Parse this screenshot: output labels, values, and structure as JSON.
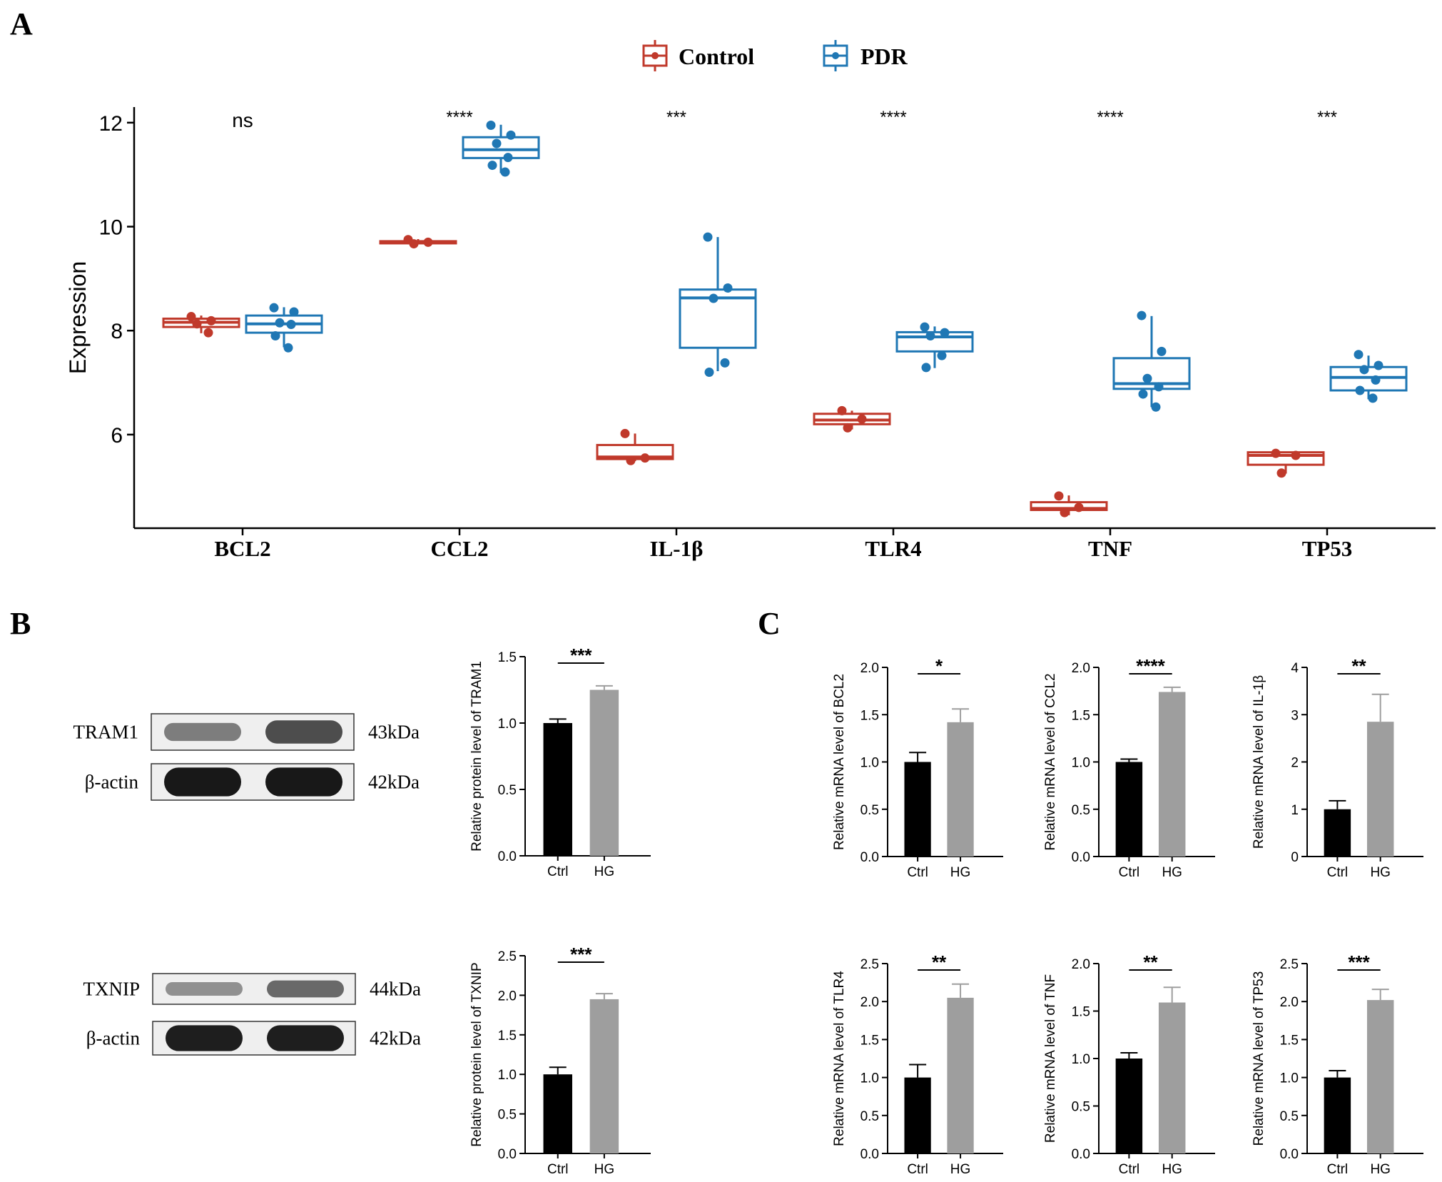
{
  "panels": {
    "a": "A",
    "b": "B",
    "c": "C"
  },
  "colors": {
    "control": "#c0392b",
    "pdr": "#1f77b4",
    "ctrl_bar": "#000000",
    "hg_bar": "#9e9e9e",
    "band": "#1a1a1a"
  },
  "chart_data": [
    {
      "id": "A",
      "type": "boxplot",
      "ylabel": "Expression",
      "ylim": [
        4.2,
        12.3
      ],
      "yticks": [
        6,
        8,
        10,
        12
      ],
      "legend": {
        "placement": "top",
        "entries": [
          "Control",
          "PDR"
        ]
      },
      "categories": [
        "BCL2",
        "CCL2",
        "IL-1β",
        "TLR4",
        "TNF",
        "TP53"
      ],
      "significance": [
        "ns",
        "****",
        "***",
        "****",
        "****",
        "***"
      ],
      "series": [
        {
          "name": "Control",
          "color": "#c0392b",
          "boxes": [
            {
              "q1": 8.07,
              "median": 8.16,
              "q3": 8.23,
              "whisker_low": 7.95,
              "whisker_high": 8.29,
              "points": [
                8.27,
                8.19,
                8.13,
                7.96
              ]
            },
            {
              "q1": 9.68,
              "median": 9.7,
              "q3": 9.72,
              "whisker_low": 9.66,
              "whisker_high": 9.76,
              "points": [
                9.75,
                9.7,
                9.67
              ]
            },
            {
              "q1": 5.53,
              "median": 5.57,
              "q3": 5.8,
              "whisker_low": 5.49,
              "whisker_high": 6.02,
              "points": [
                6.02,
                5.55,
                5.5
              ]
            },
            {
              "q1": 6.2,
              "median": 6.28,
              "q3": 6.4,
              "whisker_low": 6.1,
              "whisker_high": 6.46,
              "points": [
                6.46,
                6.3,
                6.13
              ]
            },
            {
              "q1": 4.55,
              "median": 4.58,
              "q3": 4.7,
              "whisker_low": 4.45,
              "whisker_high": 4.83,
              "points": [
                4.82,
                4.6,
                4.5
              ]
            },
            {
              "q1": 5.42,
              "median": 5.6,
              "q3": 5.66,
              "whisker_low": 5.25,
              "whisker_high": 5.67,
              "points": [
                5.64,
                5.6,
                5.26
              ]
            }
          ]
        },
        {
          "name": "PDR",
          "color": "#1f77b4",
          "boxes": [
            {
              "q1": 7.96,
              "median": 8.13,
              "q3": 8.29,
              "whisker_low": 7.68,
              "whisker_high": 8.45,
              "points": [
                8.44,
                8.36,
                8.15,
                8.12,
                7.9,
                7.67
              ]
            },
            {
              "q1": 11.32,
              "median": 11.48,
              "q3": 11.72,
              "whisker_low": 11.03,
              "whisker_high": 11.96,
              "points": [
                11.95,
                11.76,
                11.6,
                11.33,
                11.18,
                11.05
              ]
            },
            {
              "q1": 7.67,
              "median": 8.63,
              "q3": 8.79,
              "whisker_low": 7.22,
              "whisker_high": 9.8,
              "points": [
                9.8,
                8.82,
                8.62,
                7.38,
                7.2
              ]
            },
            {
              "q1": 7.6,
              "median": 7.88,
              "q3": 7.97,
              "whisker_low": 7.28,
              "whisker_high": 8.08,
              "points": [
                8.07,
                7.96,
                7.9,
                7.52,
                7.29
              ]
            },
            {
              "q1": 6.88,
              "median": 6.98,
              "q3": 7.47,
              "whisker_low": 6.53,
              "whisker_high": 8.28,
              "points": [
                8.29,
                7.6,
                7.08,
                6.92,
                6.78,
                6.53
              ]
            },
            {
              "q1": 6.85,
              "median": 7.1,
              "q3": 7.3,
              "whisker_low": 6.68,
              "whisker_high": 7.52,
              "points": [
                7.54,
                7.33,
                7.25,
                7.05,
                6.85,
                6.7
              ]
            }
          ]
        }
      ]
    },
    {
      "id": "B1",
      "type": "bar",
      "categories": [
        "Ctrl",
        "HG"
      ],
      "values": [
        1.0,
        1.25
      ],
      "errors": [
        0.03,
        0.03
      ],
      "ylabel": "Relative protein level of TRAM1",
      "ylim": [
        0,
        1.5
      ],
      "yticks": [
        "0.0",
        "0.5",
        "1.0",
        "1.5"
      ],
      "significance": "***"
    },
    {
      "id": "B2",
      "type": "bar",
      "categories": [
        "Ctrl",
        "HG"
      ],
      "values": [
        1.0,
        1.95
      ],
      "errors": [
        0.09,
        0.07
      ],
      "ylabel": "Relative protein level of TXNIP",
      "ylim": [
        0,
        2.5
      ],
      "yticks": [
        "0.0",
        "0.5",
        "1.0",
        "1.5",
        "2.0",
        "2.5"
      ],
      "significance": "***"
    },
    {
      "id": "C1",
      "type": "bar",
      "categories": [
        "Ctrl",
        "HG"
      ],
      "values": [
        1.0,
        1.42
      ],
      "errors": [
        0.1,
        0.14
      ],
      "ylabel": "Relative mRNA level of BCL2",
      "ylim": [
        0,
        2.0
      ],
      "yticks": [
        "0.0",
        "0.5",
        "1.0",
        "1.5",
        "2.0"
      ],
      "significance": "*"
    },
    {
      "id": "C2",
      "type": "bar",
      "categories": [
        "Ctrl",
        "HG"
      ],
      "values": [
        1.0,
        1.74
      ],
      "errors": [
        0.03,
        0.05
      ],
      "ylabel": "Relative mRNA level of CCL2",
      "ylim": [
        0,
        2.0
      ],
      "yticks": [
        "0.0",
        "0.5",
        "1.0",
        "1.5",
        "2.0"
      ],
      "significance": "****"
    },
    {
      "id": "C3",
      "type": "bar",
      "categories": [
        "Ctrl",
        "HG"
      ],
      "values": [
        1.0,
        2.85
      ],
      "errors": [
        0.18,
        0.58
      ],
      "ylabel": "Relative mRNA level of IL-1β",
      "ylim": [
        0,
        4
      ],
      "yticks": [
        "0",
        "1",
        "2",
        "3",
        "4"
      ],
      "significance": "**"
    },
    {
      "id": "C4",
      "type": "bar",
      "categories": [
        "Ctrl",
        "HG"
      ],
      "values": [
        1.0,
        2.05
      ],
      "errors": [
        0.17,
        0.18
      ],
      "ylabel": "Relative mRNA level of TLR4",
      "ylim": [
        0,
        2.5
      ],
      "yticks": [
        "0.0",
        "0.5",
        "1.0",
        "1.5",
        "2.0",
        "2.5"
      ],
      "significance": "**"
    },
    {
      "id": "C5",
      "type": "bar",
      "categories": [
        "Ctrl",
        "HG"
      ],
      "values": [
        1.0,
        1.59
      ],
      "errors": [
        0.06,
        0.16
      ],
      "ylabel": "Relative mRNA level of TNF",
      "ylim": [
        0,
        2.0
      ],
      "yticks": [
        "0.0",
        "0.5",
        "1.0",
        "1.5",
        "2.0"
      ],
      "significance": "**"
    },
    {
      "id": "C6",
      "type": "bar",
      "categories": [
        "Ctrl",
        "HG"
      ],
      "values": [
        1.0,
        2.02
      ],
      "errors": [
        0.09,
        0.14
      ],
      "ylabel": "Relative mRNA level of TP53",
      "ylim": [
        0,
        2.5
      ],
      "yticks": [
        "0.0",
        "0.5",
        "1.0",
        "1.5",
        "2.0",
        "2.5"
      ],
      "significance": "***"
    }
  ],
  "blots": [
    {
      "rows": [
        {
          "label": "TRAM1",
          "kda": "43kDa",
          "band_strength": [
            0.45,
            0.7
          ]
        },
        {
          "label": "β-actin",
          "kda": "42kDa",
          "band_strength": [
            0.98,
            0.98
          ]
        }
      ]
    },
    {
      "rows": [
        {
          "label": "TXNIP",
          "kda": "44kDa",
          "band_strength": [
            0.35,
            0.55
          ]
        },
        {
          "label": "β-actin",
          "kda": "42kDa",
          "band_strength": [
            0.95,
            0.95
          ]
        }
      ]
    }
  ]
}
